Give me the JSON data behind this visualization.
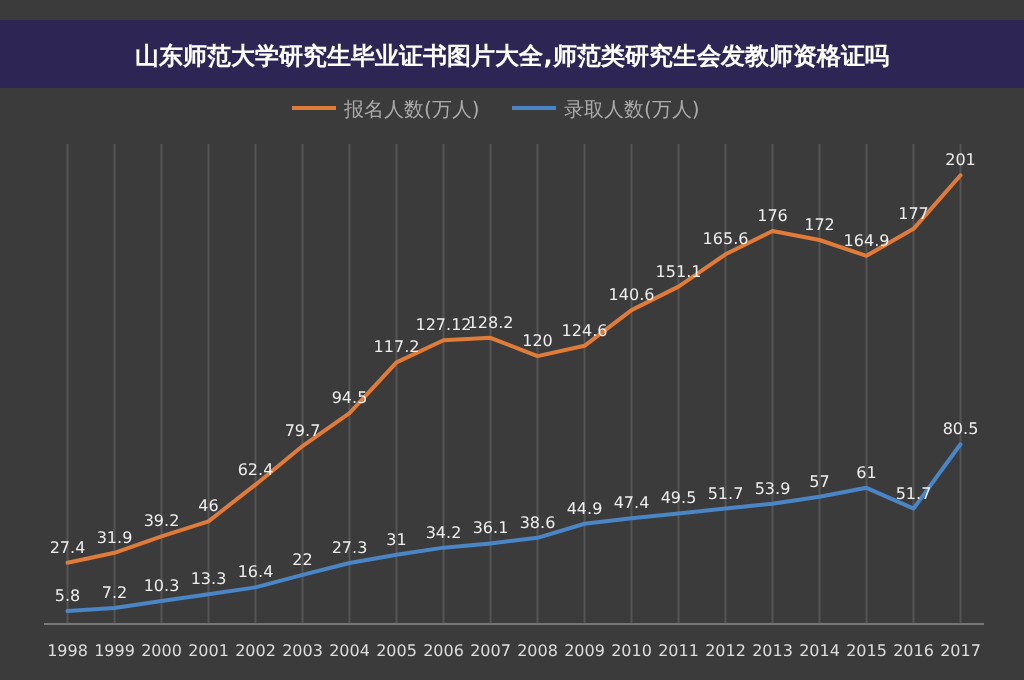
{
  "chart_data": {
    "type": "line",
    "title": "山东师范大学研究生毕业证书图片大全,师范类研究生会发教师资格证吗",
    "categories": [
      "1998",
      "1999",
      "2000",
      "2001",
      "2002",
      "2003",
      "2004",
      "2005",
      "2006",
      "2007",
      "2008",
      "2009",
      "2010",
      "2011",
      "2012",
      "2013",
      "2014",
      "2015",
      "2016",
      "2017"
    ],
    "series": [
      {
        "name": "报名人数(万人)",
        "color": "#e07b39",
        "values": [
          27.4,
          31.9,
          39.2,
          46,
          62.4,
          79.7,
          94.5,
          117.2,
          127.12,
          128.2,
          120,
          124.6,
          140.6,
          151.1,
          165.6,
          176,
          172,
          164.9,
          177,
          201
        ]
      },
      {
        "name": "录取人数(万人)",
        "color": "#4a86c5",
        "values": [
          5.8,
          7.2,
          10.3,
          13.3,
          16.4,
          22,
          27.3,
          31,
          34.2,
          36.1,
          38.6,
          44.9,
          47.4,
          49.5,
          51.7,
          53.9,
          57,
          61,
          51.7,
          80.5
        ]
      }
    ],
    "ylim": [
      0,
      215
    ],
    "tick_labels": "x",
    "grid": "x",
    "legend": "top",
    "data_labels": true,
    "marker": "none",
    "line_style": "solid"
  }
}
